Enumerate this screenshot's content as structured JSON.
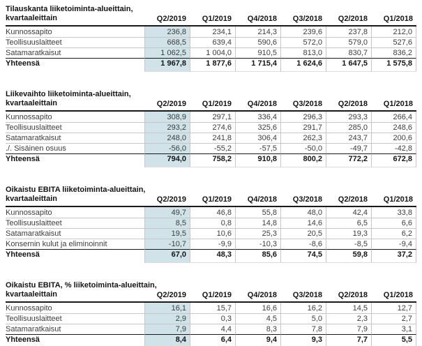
{
  "document": {
    "language": "fi",
    "highlighted_column": "Q2/2019",
    "highlight_color": "#cfe3e9"
  },
  "columns": [
    "Q2/2019",
    "Q1/2019",
    "Q4/2018",
    "Q3/2018",
    "Q2/2018",
    "Q1/2018"
  ],
  "tables": [
    {
      "title_line1": "Tilauskanta liiketoiminta-alueittain,",
      "title_line2": "kvartaaleittain",
      "rows": [
        {
          "label": "Kunnossapito",
          "values": [
            "236,8",
            "234,1",
            "214,3",
            "239,6",
            "237,8",
            "212,0"
          ]
        },
        {
          "label": "Teollisuuslaitteet",
          "values": [
            "668,5",
            "639,4",
            "590,6",
            "572,0",
            "579,0",
            "527,6"
          ]
        },
        {
          "label": "Satamaratkaisut",
          "values": [
            "1 062,5",
            "1 004,0",
            "910,5",
            "813,0",
            "830,7",
            "836,2"
          ]
        }
      ],
      "total": {
        "label": "Yhteensä",
        "values": [
          "1 967,8",
          "1 877,6",
          "1 715,4",
          "1 624,6",
          "1 647,5",
          "1 575,8"
        ]
      }
    },
    {
      "title_line1": "Liikevaihto liiketoiminta-alueittain,",
      "title_line2": "kvartaaleittain",
      "rows": [
        {
          "label": "Kunnossapito",
          "values": [
            "308,9",
            "297,1",
            "336,4",
            "296,3",
            "293,3",
            "266,4"
          ]
        },
        {
          "label": "Teollisuuslaitteet",
          "values": [
            "293,2",
            "274,6",
            "325,6",
            "291,7",
            "285,0",
            "248,6"
          ]
        },
        {
          "label": "Satamaratkaisut",
          "values": [
            "248,0",
            "241,8",
            "306,4",
            "262,3",
            "243,7",
            "200,6"
          ]
        },
        {
          "label": "./. Sisäinen osuus",
          "values": [
            "-56,0",
            "-55,2",
            "-57,5",
            "-50,0",
            "-49,7",
            "-42,8"
          ]
        }
      ],
      "total": {
        "label": "Yhteensä",
        "values": [
          "794,0",
          "758,2",
          "910,8",
          "800,2",
          "772,2",
          "672,8"
        ]
      }
    },
    {
      "title_line1": "Oikaistu EBITA liiketoiminta-alueittain,",
      "title_line2": "kvartaaleittain",
      "rows": [
        {
          "label": "Kunnossapito",
          "values": [
            "49,7",
            "46,8",
            "55,8",
            "48,0",
            "42,4",
            "33,8"
          ]
        },
        {
          "label": "Teollisuuslaitteet",
          "values": [
            "8,5",
            "0,8",
            "14,8",
            "14,6",
            "6,5",
            "6,6"
          ]
        },
        {
          "label": "Satamaratkaisut",
          "values": [
            "19,5",
            "10,6",
            "25,3",
            "20,5",
            "19,3",
            "6,2"
          ]
        },
        {
          "label": "Konsernin kulut ja eliminoinnit",
          "values": [
            "-10,7",
            "-9,9",
            "-10,3",
            "-8,6",
            "-8,5",
            "-9,4"
          ]
        }
      ],
      "total": {
        "label": "Yhteensä",
        "values": [
          "67,0",
          "48,3",
          "85,6",
          "74,5",
          "59,8",
          "37,2"
        ]
      }
    },
    {
      "title_line1": "Oikaistu EBITA, % liiketoiminta-alueittain,",
      "title_line2": "kvartaaleittain",
      "rows": [
        {
          "label": "Kunnossapito",
          "values": [
            "16,1",
            "15,7",
            "16,6",
            "16,2",
            "14,5",
            "12,7"
          ]
        },
        {
          "label": "Teollisuuslaitteet",
          "values": [
            "2,9",
            "0,3",
            "4,5",
            "5,0",
            "2,3",
            "2,7"
          ]
        },
        {
          "label": "Satamaratkaisut",
          "values": [
            "7,9",
            "4,4",
            "8,3",
            "7,8",
            "7,9",
            "3,1"
          ]
        }
      ],
      "total": {
        "label": "Yhteensä",
        "values": [
          "8,4",
          "6,4",
          "9,4",
          "9,3",
          "7,7",
          "5,5"
        ]
      }
    }
  ]
}
